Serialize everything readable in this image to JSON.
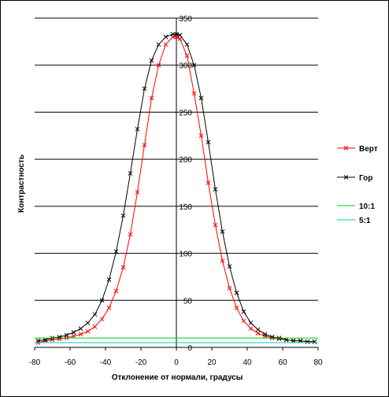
{
  "chart_data": {
    "type": "line",
    "title": "",
    "xlabel": "Отклонение от нормали, градусы",
    "ylabel": "Контрастность",
    "xlim": [
      -80,
      80
    ],
    "ylim": [
      0,
      350
    ],
    "xticks": [
      -80,
      -60,
      -40,
      -20,
      0,
      20,
      40,
      60,
      80
    ],
    "yticks": [
      0,
      50,
      100,
      150,
      200,
      250,
      300,
      350
    ],
    "grid": "horizontal",
    "legend_position": "right",
    "series": [
      {
        "name": "Верт",
        "color": "#ff0000",
        "marker": "x",
        "x": [
          -78,
          -74,
          -70,
          -66,
          -62,
          -58,
          -54,
          -50,
          -46,
          -42,
          -38,
          -34,
          -30,
          -26,
          -22,
          -18,
          -14,
          -10,
          -6,
          -2,
          0,
          2,
          6,
          10,
          14,
          18,
          22,
          26,
          30,
          34,
          38,
          42,
          46,
          50,
          54,
          58,
          62,
          66,
          70,
          74,
          78
        ],
        "values": [
          5,
          7,
          8,
          9,
          10,
          12,
          14,
          17,
          22,
          30,
          42,
          60,
          85,
          120,
          165,
          215,
          265,
          300,
          322,
          330,
          330,
          328,
          310,
          270,
          225,
          175,
          130,
          92,
          63,
          42,
          28,
          20,
          15,
          12,
          10,
          9,
          8,
          7,
          7,
          6,
          6
        ]
      },
      {
        "name": "Гор",
        "color": "#000000",
        "marker": "x",
        "x": [
          -78,
          -74,
          -70,
          -66,
          -62,
          -58,
          -54,
          -50,
          -46,
          -42,
          -38,
          -34,
          -30,
          -26,
          -22,
          -18,
          -14,
          -10,
          -6,
          -2,
          0,
          2,
          6,
          10,
          14,
          18,
          22,
          26,
          30,
          34,
          38,
          42,
          46,
          50,
          54,
          58,
          62,
          66,
          70,
          74,
          78
        ],
        "values": [
          7,
          8,
          10,
          11,
          13,
          16,
          20,
          26,
          35,
          50,
          72,
          102,
          140,
          185,
          232,
          275,
          305,
          322,
          330,
          333,
          333,
          332,
          322,
          300,
          265,
          218,
          168,
          123,
          86,
          58,
          38,
          26,
          19,
          14,
          11,
          10,
          8,
          7,
          7,
          6,
          6
        ]
      },
      {
        "name": "10:1",
        "color": "#00cc00",
        "marker": "none",
        "x": [
          -80,
          80
        ],
        "values": [
          10,
          10
        ]
      },
      {
        "name": "5:1",
        "color": "#00cccc",
        "marker": "none",
        "x": [
          -80,
          80
        ],
        "values": [
          5,
          5
        ]
      }
    ]
  }
}
